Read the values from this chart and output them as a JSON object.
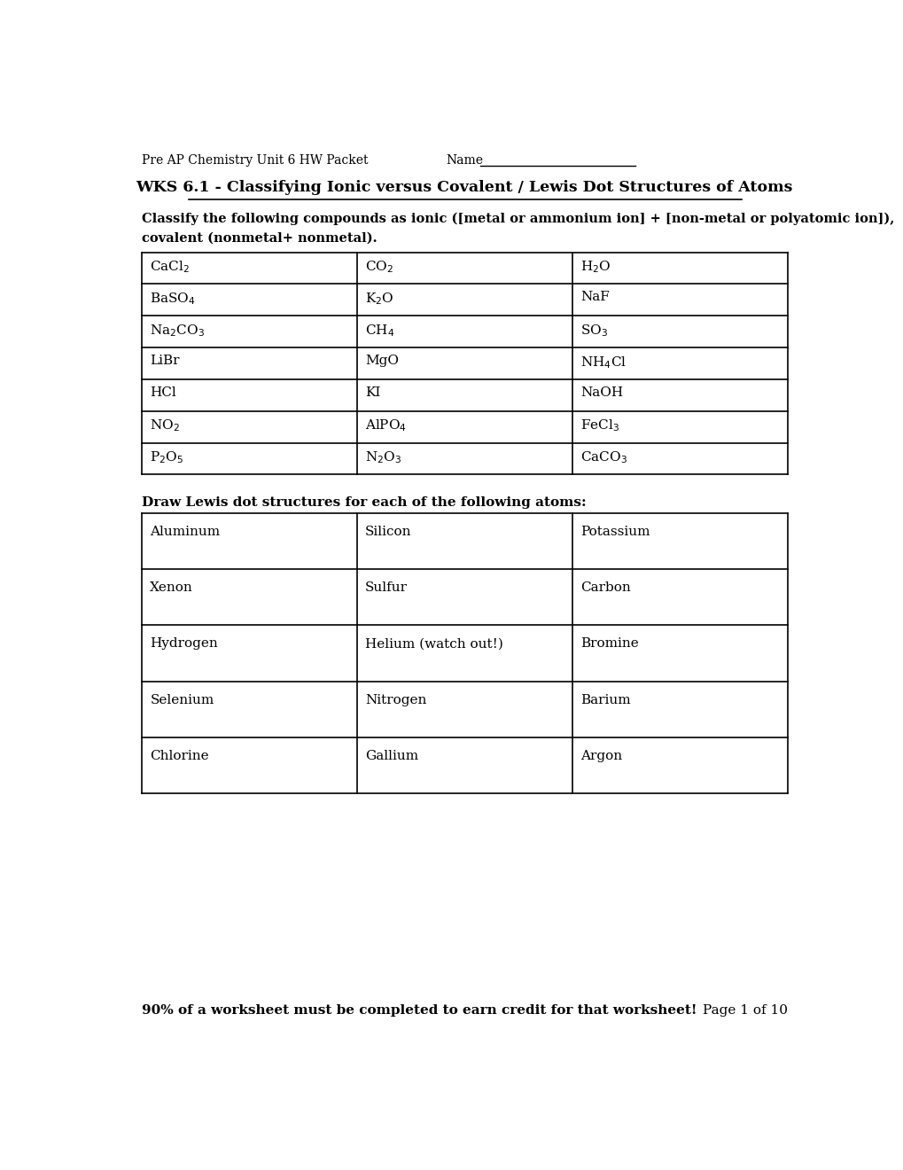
{
  "header_left": "Pre AP Chemistry Unit 6 HW Packet",
  "header_right_label": "Name",
  "title": "WKS 6.1 - Classifying Ionic versus Covalent / Lewis Dot Structures of Atoms",
  "instruction1": "Classify the following compounds as ionic ([metal or ammonium ion] + [non-metal or polyatomic ion]),",
  "instruction1b": "covalent (nonmetal+ nonmetal).",
  "table1_rows": [
    [
      "CaCl$_2$",
      "CO$_2$",
      "H$_2$O"
    ],
    [
      "BaSO$_4$",
      "K$_2$O",
      "NaF"
    ],
    [
      "Na$_2$CO$_3$",
      "CH$_4$",
      "SO$_3$"
    ],
    [
      "LiBr",
      "MgO",
      "NH$_4$Cl"
    ],
    [
      "HCl",
      "KI",
      "NaOH"
    ],
    [
      "NO$_2$",
      "AlPO$_4$",
      "FeCl$_3$"
    ],
    [
      "P$_2$O$_5$",
      "N$_2$O$_3$",
      "CaCO$_3$"
    ]
  ],
  "instruction2": "Draw Lewis dot structures for each of the following atoms:",
  "table2_rows": [
    [
      "Aluminum",
      "Silicon",
      "Potassium"
    ],
    [
      "Xenon",
      "Sulfur",
      "Carbon"
    ],
    [
      "Hydrogen",
      "Helium (watch out!)",
      "Bromine"
    ],
    [
      "Selenium",
      "Nitrogen",
      "Barium"
    ],
    [
      "Chlorine",
      "Gallium",
      "Argon"
    ]
  ],
  "footer_left": "90% of a worksheet must be completed to earn credit for that worksheet!",
  "footer_right": "Page 1 of 10",
  "bg_color": "#ffffff",
  "text_color": "#000000"
}
